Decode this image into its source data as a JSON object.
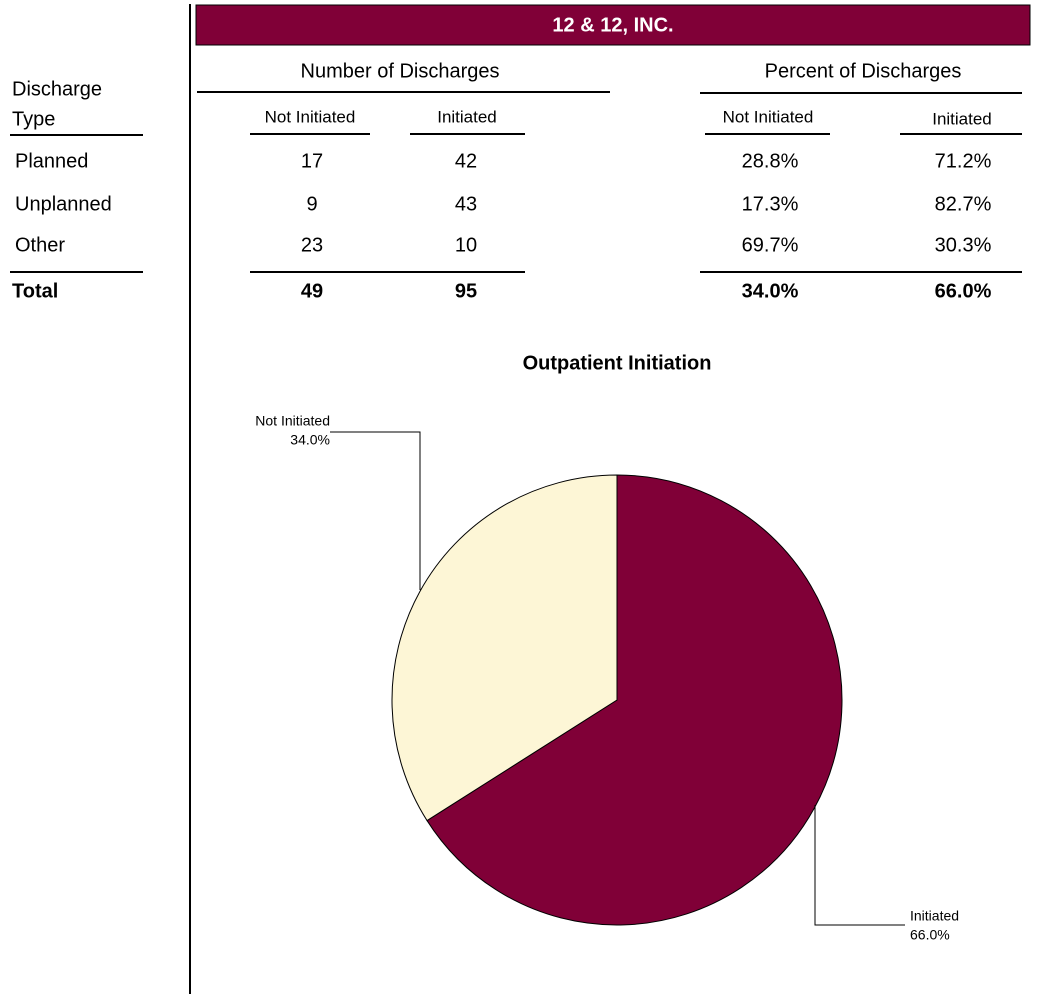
{
  "header": {
    "title": "12 & 12, INC."
  },
  "table": {
    "row_header": [
      "Discharge",
      "Type"
    ],
    "groups": [
      "Number of Discharges",
      "Percent of Discharges"
    ],
    "subheaders": [
      "Not Initiated",
      "Initiated",
      "Not Initiated",
      "Initiated"
    ],
    "rows": [
      [
        "Planned",
        "17",
        "42",
        "28.8%",
        "71.2%"
      ],
      [
        "Unplanned",
        "9",
        "43",
        "17.3%",
        "82.7%"
      ],
      [
        "Other",
        "23",
        "10",
        "69.7%",
        "30.3%"
      ]
    ],
    "total": [
      "Total",
      "49",
      "95",
      "34.0%",
      "66.0%"
    ]
  },
  "chart_data": {
    "type": "pie",
    "title": "Outpatient Initiation",
    "categories": [
      "Not Initiated",
      "Initiated"
    ],
    "values": [
      34.0,
      66.0
    ],
    "value_labels": [
      "34.0%",
      "66.0%"
    ],
    "colors": [
      "#fdf6d6",
      "#800037"
    ]
  }
}
